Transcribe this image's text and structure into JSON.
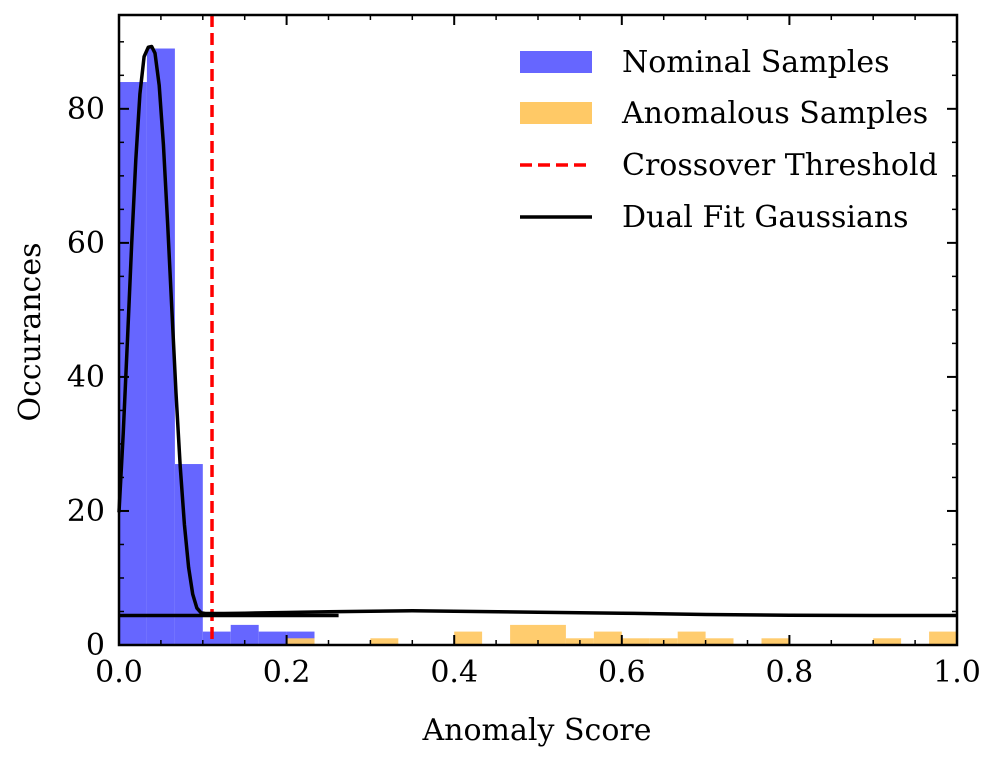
{
  "chart_data": {
    "type": "bar",
    "xlabel": "Anomaly Score",
    "ylabel": "Occurances",
    "xlim": [
      0.0,
      1.0
    ],
    "ylim": [
      0,
      94
    ],
    "xticks": [
      "0.0",
      "0.2",
      "0.4",
      "0.6",
      "0.8",
      "1.0"
    ],
    "yticks": [
      "0",
      "20",
      "40",
      "60",
      "80"
    ],
    "bin_width": 0.0333,
    "legend_position": "top-right",
    "series": [
      {
        "name": "Nominal Samples",
        "kind": "histogram",
        "color": "#6666ff",
        "bins": [
          {
            "x0": 0.0,
            "x1": 0.0333,
            "count": 84
          },
          {
            "x0": 0.0333,
            "x1": 0.0667,
            "count": 89
          },
          {
            "x0": 0.0667,
            "x1": 0.1,
            "count": 27
          },
          {
            "x0": 0.1,
            "x1": 0.1333,
            "count": 2
          },
          {
            "x0": 0.1333,
            "x1": 0.1667,
            "count": 3
          },
          {
            "x0": 0.1667,
            "x1": 0.2,
            "count": 2
          },
          {
            "x0": 0.2,
            "x1": 0.2333,
            "count": 2
          }
        ]
      },
      {
        "name": "Anomalous Samples",
        "kind": "histogram",
        "color": "#ffc966",
        "bins": [
          {
            "x0": 0.2,
            "x1": 0.2333,
            "count": 1
          },
          {
            "x0": 0.3,
            "x1": 0.3333,
            "count": 1
          },
          {
            "x0": 0.4,
            "x1": 0.4333,
            "count": 2
          },
          {
            "x0": 0.4667,
            "x1": 0.5,
            "count": 3
          },
          {
            "x0": 0.5,
            "x1": 0.5333,
            "count": 3
          },
          {
            "x0": 0.5333,
            "x1": 0.5667,
            "count": 1
          },
          {
            "x0": 0.5667,
            "x1": 0.6,
            "count": 2
          },
          {
            "x0": 0.6,
            "x1": 0.6333,
            "count": 1
          },
          {
            "x0": 0.6333,
            "x1": 0.6667,
            "count": 1
          },
          {
            "x0": 0.6667,
            "x1": 0.7,
            "count": 2
          },
          {
            "x0": 0.7,
            "x1": 0.7333,
            "count": 1
          },
          {
            "x0": 0.7667,
            "x1": 0.8,
            "count": 1
          },
          {
            "x0": 0.9,
            "x1": 0.9333,
            "count": 1
          },
          {
            "x0": 0.9667,
            "x1": 1.0,
            "count": 2
          }
        ]
      },
      {
        "name": "Crossover Threshold",
        "kind": "vline",
        "color": "#ff0000",
        "x": 0.111
      },
      {
        "name": "Dual Fit Gaussians",
        "kind": "curves",
        "color": "#000000",
        "curves": [
          {
            "x": [
              0.0,
              0.005,
              0.01,
              0.015,
              0.02,
              0.025,
              0.03,
              0.035,
              0.039,
              0.043,
              0.048,
              0.053,
              0.058,
              0.063,
              0.068,
              0.073,
              0.078,
              0.083,
              0.088,
              0.093,
              0.098,
              0.103,
              0.108,
              0.115,
              0.125,
              0.15,
              0.2,
              0.25,
              0.3,
              0.35,
              0.4,
              0.5,
              0.6,
              0.7,
              0.8,
              0.9,
              1.0
            ],
            "y": [
              19.8,
              31.5,
              45.3,
              59.6,
              72.4,
              82.2,
              87.8,
              89.2,
              89.3,
              88.3,
              83.5,
              74.7,
              63.0,
              50.2,
              37.6,
              26.7,
              18.0,
              11.6,
              7.6,
              5.5,
              4.8,
              4.7,
              4.7,
              4.7,
              4.7,
              4.75,
              4.85,
              4.95,
              5.05,
              5.1,
              5.05,
              4.9,
              4.75,
              4.55,
              4.45,
              4.4,
              4.4
            ]
          },
          {
            "x": [
              0.0,
              0.1,
              0.2,
              0.262
            ],
            "y": [
              4.4,
              4.4,
              4.4,
              4.4
            ]
          }
        ]
      }
    ]
  }
}
